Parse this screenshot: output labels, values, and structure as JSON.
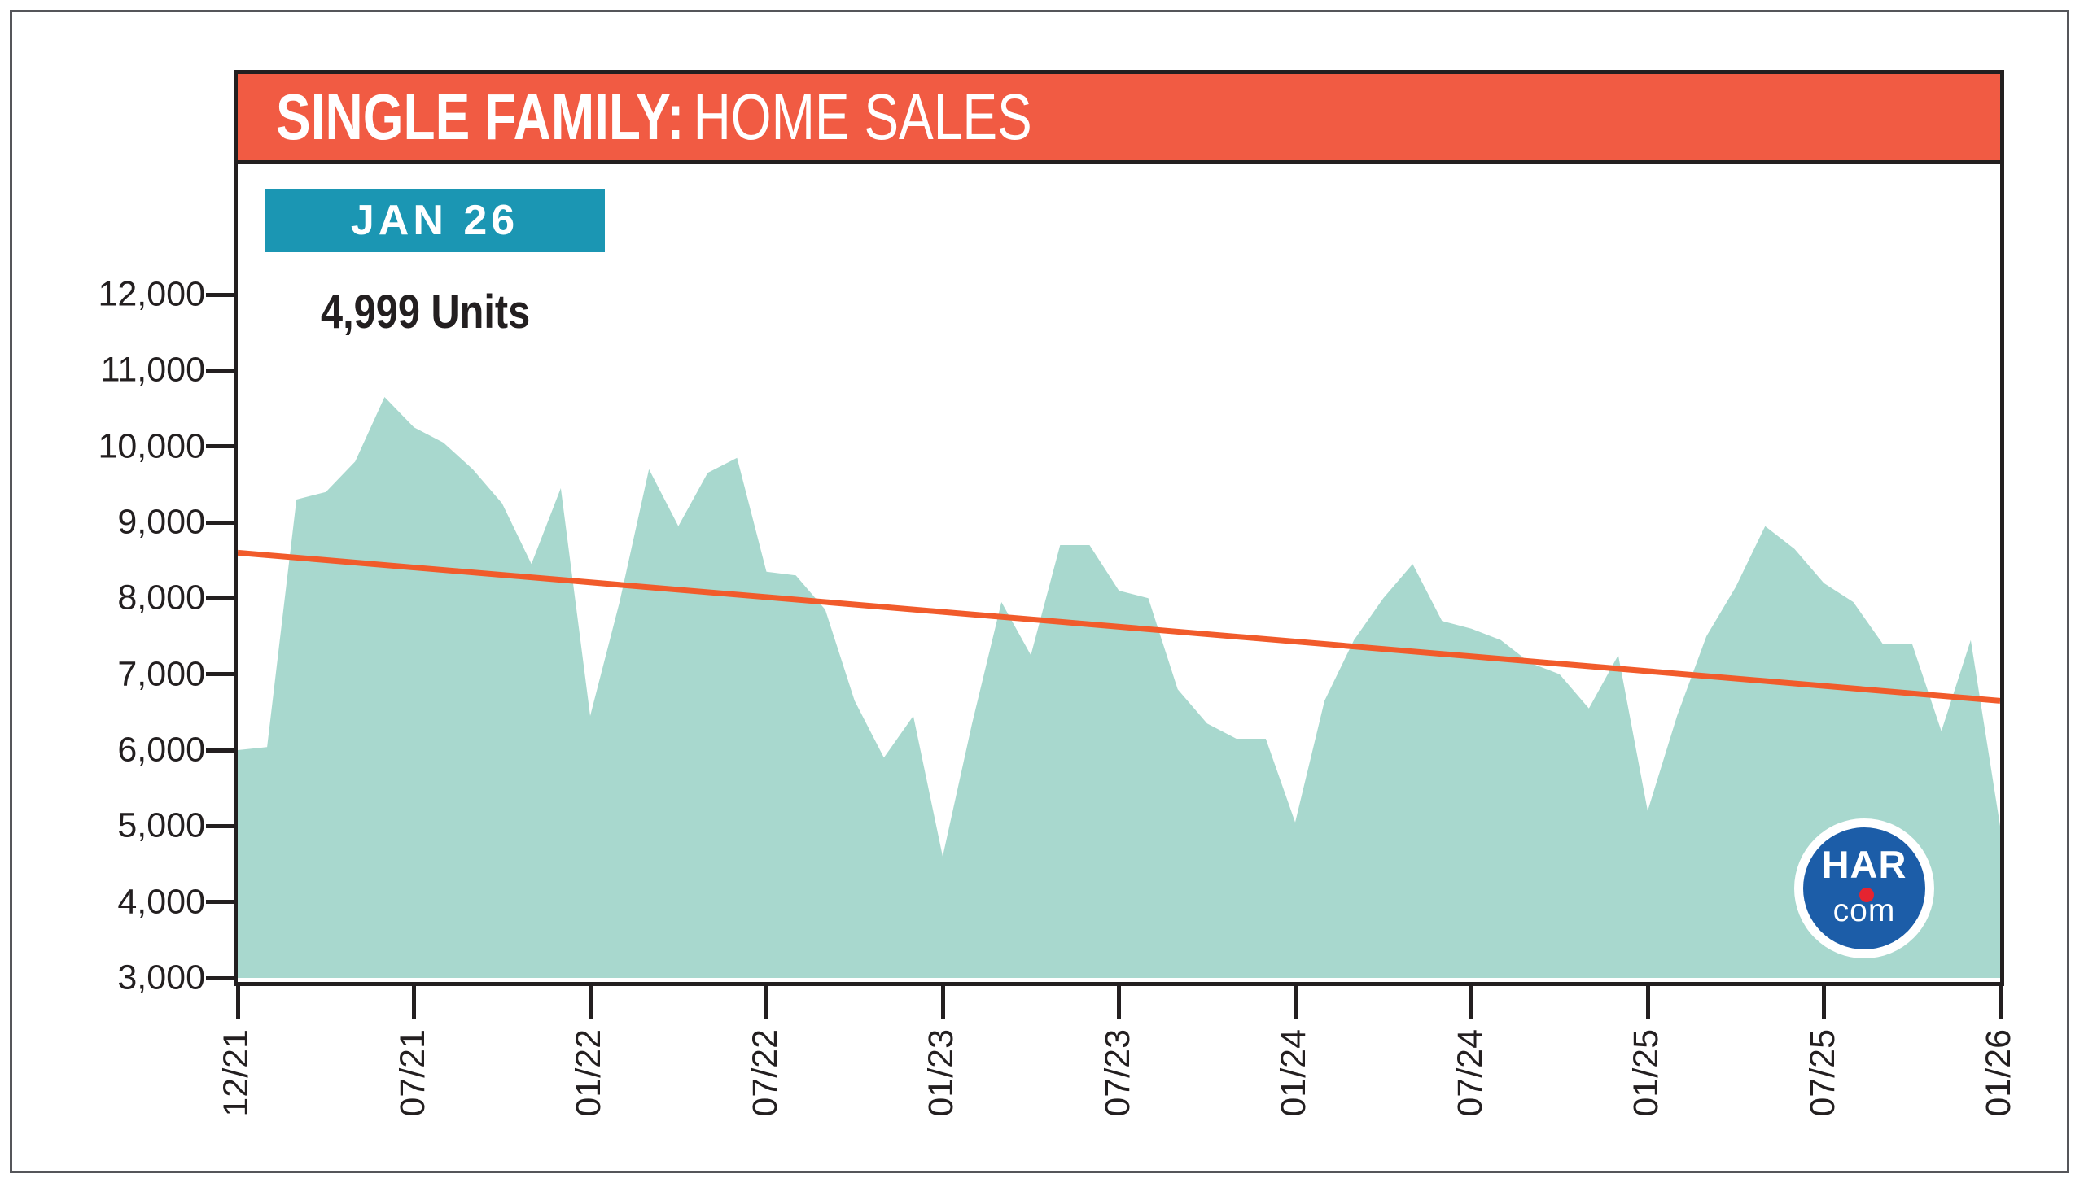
{
  "header": {
    "title_bold": "SINGLE FAMILY:",
    "title_regular": "HOME SALES"
  },
  "callout": {
    "badge_label": "JAN 26",
    "units_label": "4,999 Units"
  },
  "logo": {
    "line1": "HAR",
    "line2": "com"
  },
  "colors": {
    "header_bg": "#F15B43",
    "badge_bg": "#1B96B3",
    "area_fill": "#A8D8CE",
    "trend_line": "#F15B2B",
    "axis_ink": "#231F20",
    "logo_blue": "#1C5DA8",
    "logo_dot_red": "#E52430"
  },
  "chart_data": {
    "type": "area",
    "title": "SINGLE FAMILY: HOME SALES",
    "subtitle_badge": "JAN 26",
    "latest_value": 4999,
    "latest_value_label": "4,999 Units",
    "xlabel": "",
    "ylabel": "",
    "ylim": [
      3000,
      12000
    ],
    "y_tick_step": 1000,
    "y_tick_labels": [
      "12,000",
      "11,000",
      "10,000",
      "9,000",
      "8,000",
      "7,000",
      "6,000",
      "5,000",
      "4,000",
      "3,000"
    ],
    "x_tick_labels": [
      "12/21",
      "07/21",
      "01/22",
      "07/22",
      "01/23",
      "07/23",
      "01/24",
      "07/24",
      "01/25",
      "07/25",
      "01/26"
    ],
    "months_between_labeled_ticks": 6,
    "grid": "off",
    "legend": "none",
    "series": [
      {
        "name": "Single Family Home Sales (monthly units)",
        "values": [
          6000,
          6040,
          9300,
          9400,
          9800,
          10650,
          10250,
          10050,
          9700,
          9250,
          8450,
          9450,
          6450,
          7950,
          9700,
          8950,
          9650,
          9850,
          8350,
          8300,
          7850,
          6650,
          5900,
          6450,
          4600,
          6350,
          7950,
          7250,
          8700,
          8700,
          8100,
          8000,
          6800,
          6350,
          6150,
          6150,
          5050,
          6650,
          7450,
          8000,
          8450,
          7700,
          7600,
          7450,
          7150,
          7000,
          6550,
          7250,
          5200,
          6450,
          7500,
          8150,
          8950,
          8650,
          8200,
          7950,
          7400,
          7400,
          6250,
          7450,
          4999
        ]
      }
    ],
    "trend_line": {
      "style": "straight",
      "start_value": 8600,
      "end_value": 6650
    }
  }
}
